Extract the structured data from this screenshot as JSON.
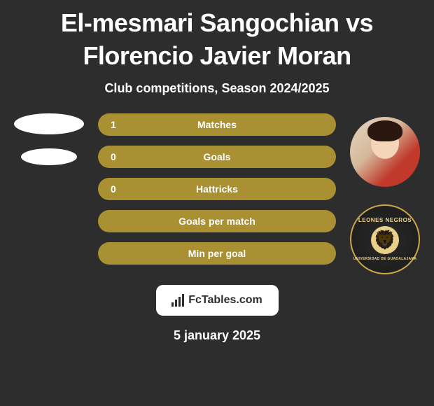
{
  "header": {
    "title": "El-mesmari Sangochian vs Florencio Javier Moran",
    "subtitle": "Club competitions, Season 2024/2025"
  },
  "stats": {
    "rows": [
      {
        "label": "Matches",
        "value_left": "1"
      },
      {
        "label": "Goals",
        "value_left": "0"
      },
      {
        "label": "Hattricks",
        "value_left": "0"
      },
      {
        "label": "Goals per match",
        "value_left": ""
      },
      {
        "label": "Min per goal",
        "value_left": ""
      }
    ],
    "bar_color": "#a89033",
    "text_color": "#ffffff"
  },
  "site": {
    "name": "FcTables.com"
  },
  "footer": {
    "date": "5 january 2025"
  },
  "right_player": {
    "club_top_text": "LEONES NEGROS",
    "club_bottom_text": "UNIVERSIDAD DE GUADALAJARA"
  },
  "colors": {
    "background": "#2d2d2d",
    "bar": "#a89033",
    "white": "#ffffff",
    "badge_gold": "#e8d088"
  }
}
